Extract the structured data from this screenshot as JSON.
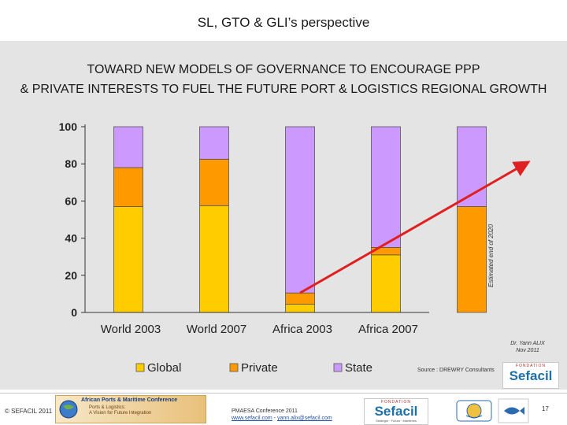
{
  "slide": {
    "title": "SL, GTO & GLI’s perspective",
    "headline_line1": "TOWARD NEW MODELS OF GOVERNANCE TO ENCOURAGE PPP",
    "headline_line2": "& PRIVATE INTERESTS TO FUEL THE FUTURE PORT & LOGISTICS REGIONAL GROWTH",
    "estimate_label": "Estimated end of 2020",
    "credit_line1": "Dr. Yann ALIX",
    "credit_line2": "Nov 2011",
    "source": "Source : DREWRY Consultants"
  },
  "footer": {
    "copyright": "© SEFACIL 2011",
    "conference_title": "African Ports & Maritime Conference",
    "conference_sub1": "Ports & Logistics:",
    "conference_sub2": "A Vision for Future Integration",
    "event": "PMAESA Conference 2011",
    "website": "www.sefacil.com",
    "email": "yann.alix@sefacil.com",
    "separator": " - ",
    "page": "17",
    "sefacil_logo_top": "FONDATION",
    "sefacil_logo_name": "Sefacil",
    "sefacil_logo_tag": "Stratégie · Futurs · Maritimes"
  },
  "colors": {
    "global": "#FFCC00",
    "private": "#FF9900",
    "state": "#CC99FF",
    "arrow": "#E02020",
    "panel": "#E4E4E4"
  },
  "chart_data": {
    "type": "bar",
    "stacked": true,
    "categories": [
      "World 2003",
      "World 2007",
      "Africa 2003",
      "Africa 2007",
      ""
    ],
    "series": [
      {
        "name": "Global",
        "values": [
          57,
          57.5,
          4.5,
          31,
          0
        ]
      },
      {
        "name": "Private",
        "values": [
          21,
          25,
          6,
          4,
          57
        ]
      },
      {
        "name": "State",
        "values": [
          22,
          17.5,
          89.5,
          65,
          43
        ]
      }
    ],
    "ylim": [
      0,
      100
    ],
    "yticks": [
      0,
      20,
      40,
      60,
      80,
      100
    ],
    "grid": false,
    "legend": "bottom",
    "xlabel": "",
    "ylabel": ""
  }
}
